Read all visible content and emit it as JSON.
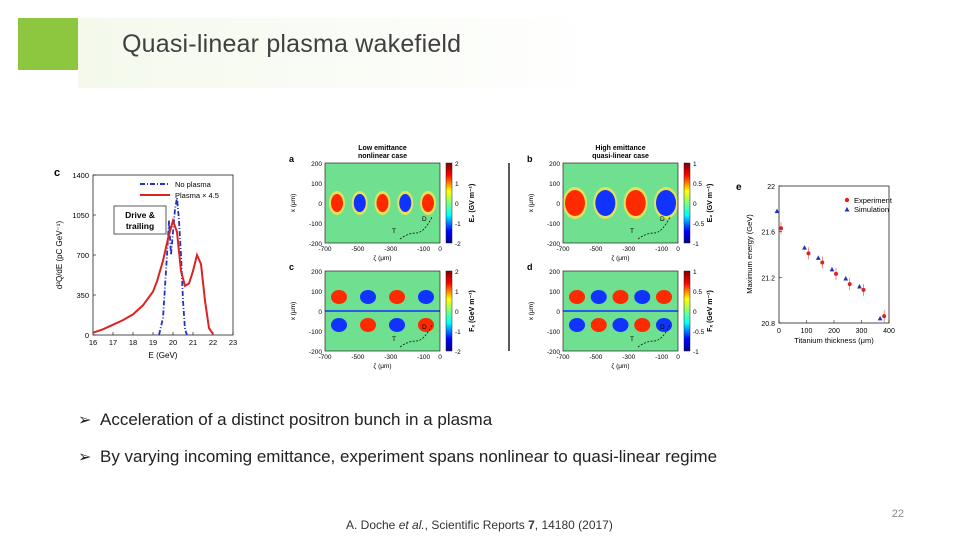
{
  "title": "Quasi-linear plasma wakefield",
  "bullets": [
    "Acceleration of a distinct positron bunch in a plasma",
    "By varying incoming emittance, experiment spans nonlinear to quasi-linear regime"
  ],
  "bullet_icon": "arrow-right-icon",
  "page_number": "22",
  "citation": {
    "authors": "A. Doche ",
    "etal": "et al.",
    "journal": ", Scientific Reports ",
    "volume": "7",
    "rest": ", 14180 (2017)"
  },
  "colors": {
    "accent": "#8dc63f",
    "no_plasma": "#2233bb",
    "plasma": "#dd2222"
  },
  "fig_c": {
    "panel_label": "c",
    "legend": [
      "No plasma",
      "Plasma × 4.5"
    ],
    "inset": "Drive &\ntrailing",
    "ylabel": "d²Q/dE (pC GeV⁻¹)",
    "xlabel": "E (GeV)",
    "yticks": [
      "1400",
      "1050",
      "700",
      "350",
      "0"
    ],
    "xticks": [
      "16",
      "17",
      "18",
      "19",
      "20",
      "21",
      "22",
      "23"
    ]
  },
  "maps": {
    "a": {
      "label": "a",
      "title": "Low emittance\nnonlinear case"
    },
    "b": {
      "label": "b",
      "title": "High emittance\nquasi-linear case"
    },
    "c": {
      "label": "c"
    },
    "d": {
      "label": "d"
    },
    "yticks": [
      "200",
      "100",
      "0",
      "-100",
      "-200"
    ],
    "xticks": [
      "-700",
      "-500",
      "-300",
      "-100",
      "0"
    ],
    "ylabel": "x (μm)",
    "xlabel": "ζ (μm)",
    "cbar_ticks_a": [
      "2",
      "1",
      "0",
      "-1",
      "-2"
    ],
    "cbar_ticks_b": [
      "1",
      "0.5",
      "0",
      "-0.5",
      "-1"
    ],
    "cbar_label_ez": "E₂ (GV m⁻¹)",
    "cbar_label_fx": "Fₓ (GeV m⁻¹)",
    "marker_d": "D",
    "marker_t": "T"
  },
  "fig_e": {
    "panel_label": "e",
    "legend": [
      "Experiment",
      "Simulation"
    ],
    "ylabel": "Maximum energy (GeV)",
    "xlabel": "Titanium thickness (μm)",
    "yticks": [
      "22",
      "21.6",
      "21.2",
      "20.8"
    ],
    "xticks": [
      "0",
      "100",
      "200",
      "300",
      "400"
    ]
  },
  "chart_data": [
    {
      "type": "line",
      "title": "",
      "xlabel": "E (GeV)",
      "ylabel": "d²Q/dE (pC GeV⁻¹)",
      "xlim": [
        16,
        23
      ],
      "ylim": [
        0,
        1400
      ],
      "series": [
        {
          "name": "No plasma",
          "x": [
            19.3,
            19.5,
            19.7,
            19.8,
            19.9,
            20.0,
            20.1,
            20.2,
            20.3,
            20.4,
            20.5,
            20.6,
            20.7
          ],
          "y": [
            0,
            150,
            700,
            1000,
            700,
            900,
            1100,
            1200,
            1000,
            700,
            300,
            50,
            0
          ]
        },
        {
          "name": "Plasma × 4.5",
          "x": [
            16,
            16.5,
            17,
            17.5,
            18,
            18.5,
            19,
            19.2,
            19.5,
            19.8,
            20,
            20.2,
            20.4,
            20.6,
            20.8,
            21,
            21.2,
            21.4,
            21.6,
            21.8,
            22
          ],
          "y": [
            20,
            50,
            90,
            130,
            180,
            260,
            380,
            470,
            650,
            880,
            1000,
            900,
            560,
            430,
            450,
            560,
            700,
            620,
            300,
            60,
            10
          ]
        }
      ]
    },
    {
      "type": "scatter",
      "title": "",
      "xlabel": "Titanium thickness (μm)",
      "ylabel": "Maximum energy (GeV)",
      "xlim": [
        0,
        400
      ],
      "ylim": [
        20.8,
        22
      ],
      "series": [
        {
          "name": "Experiment",
          "x": [
            0,
            100,
            150,
            200,
            250,
            300,
            375
          ],
          "y": [
            21.63,
            21.41,
            21.33,
            21.23,
            21.14,
            21.09,
            20.86
          ]
        },
        {
          "name": "Simulation",
          "x": [
            0,
            100,
            150,
            200,
            250,
            300,
            375
          ],
          "y": [
            21.78,
            21.46,
            21.37,
            21.27,
            21.19,
            21.12,
            20.84
          ]
        }
      ]
    }
  ]
}
